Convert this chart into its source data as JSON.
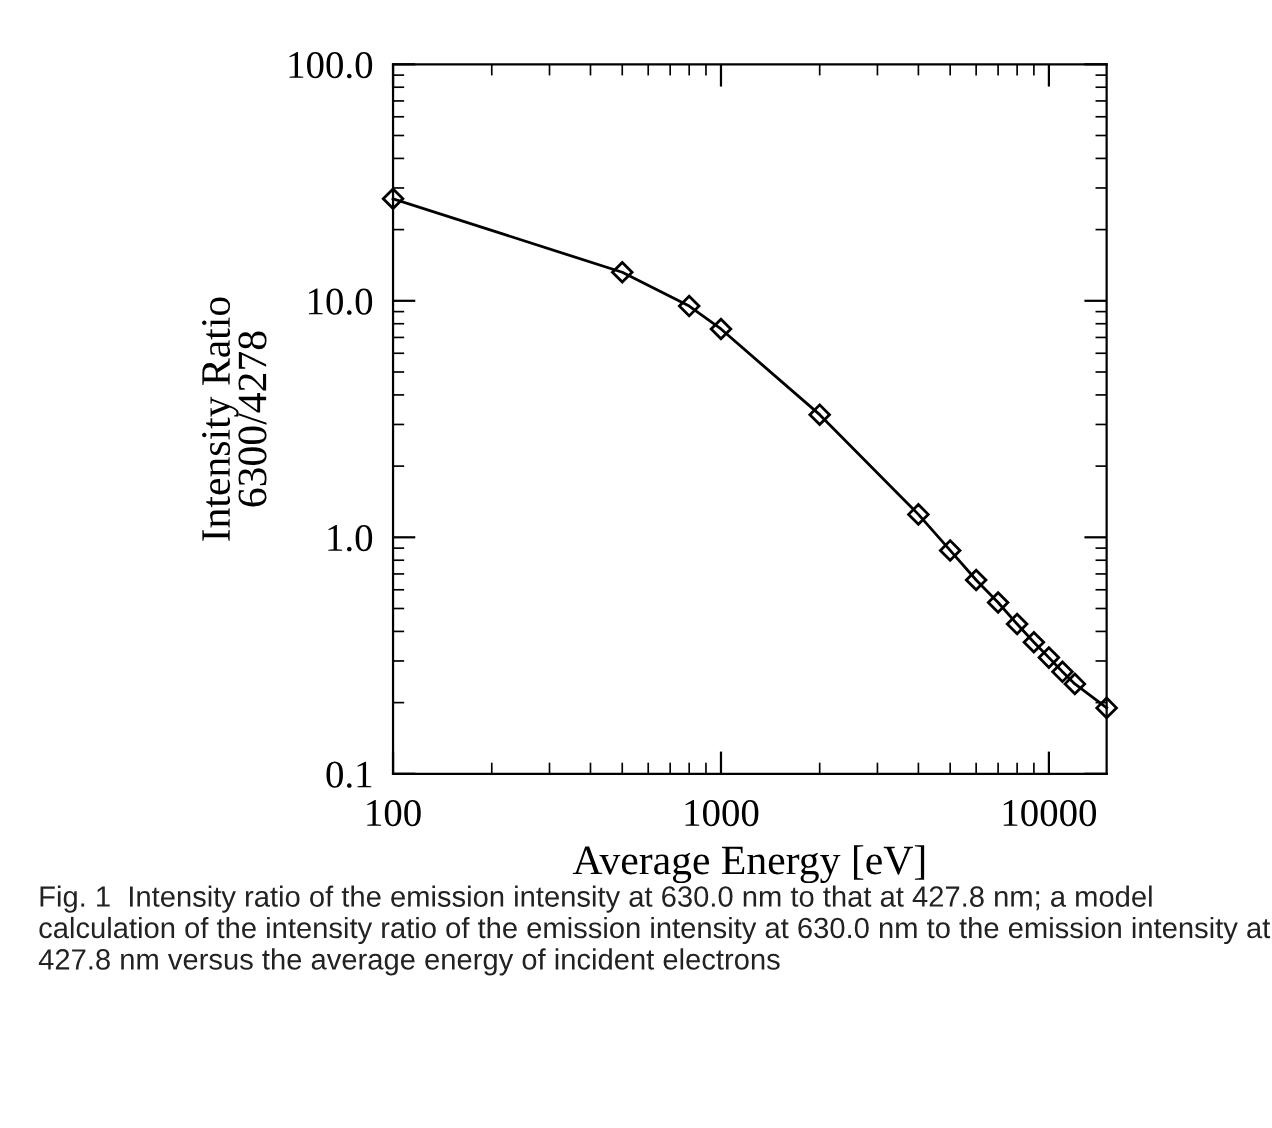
{
  "chart_data": {
    "type": "line",
    "xlabel": "Average Energy [eV]",
    "ylabel": "Intensity Ratio\n6300/4278",
    "annotations": [
      "Fig. 1  Intensity ratio of the emission intensity at 630.0 nm to that at 427.8 nm; a model calculation of the intensity ratio of the emission intensity at 630.0 nm to the emission intensity at 427.8 nm versus the average energy of incident electrons"
    ],
    "x": [
      100,
      500,
      800,
      1000,
      2000,
      4000,
      5000,
      6000,
      7000,
      8000,
      9000,
      10000,
      11000,
      12000,
      15000
    ],
    "series": [
      {
        "color": "#000000",
        "values": [
          27,
          13.2,
          9.5,
          7.6,
          3.3,
          1.25,
          0.88,
          0.66,
          0.53,
          0.43,
          0.36,
          0.31,
          0.27,
          0.24,
          0.19
        ]
      }
    ],
    "log": "xy",
    "marker": "diamond",
    "line_style": "solid",
    "grid": false,
    "legend": false,
    "xlim": [
      100,
      15000
    ],
    "ylim": [
      0.1,
      100
    ],
    "xticks": [
      100,
      1000,
      10000
    ],
    "yticks": [
      {
        "value": 0.1,
        "label": "0.1"
      },
      {
        "value": 1,
        "label": "1.0"
      },
      {
        "value": 10,
        "label": "10.0"
      },
      {
        "value": 100,
        "label": "100.0"
      }
    ]
  }
}
